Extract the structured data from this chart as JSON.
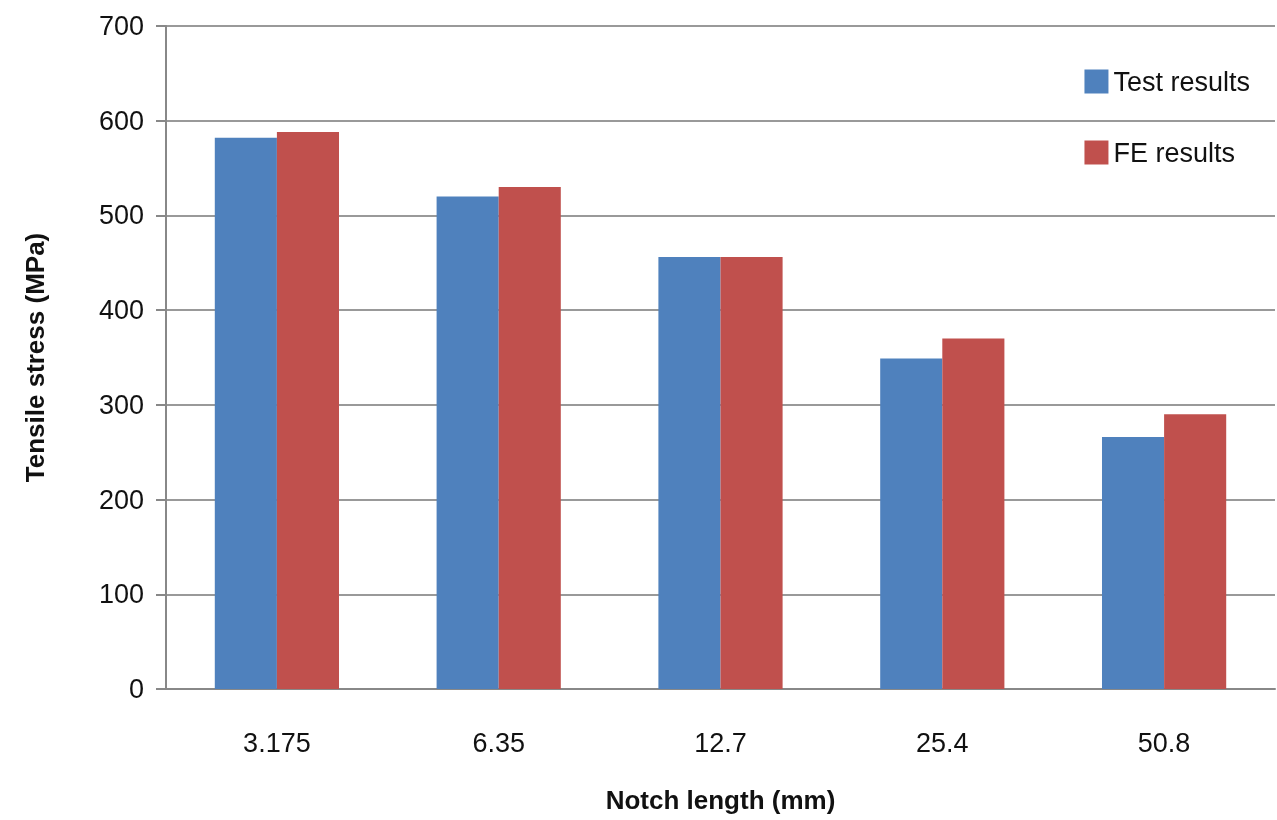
{
  "chart_data": {
    "type": "bar",
    "xlabel": "Notch length (mm)",
    "ylabel": "Tensile stress (MPa)",
    "categories": [
      "3.175",
      "6.35",
      "12.7",
      "25.4",
      "50.8"
    ],
    "series": [
      {
        "name": "Test results",
        "color": "#4f81bd",
        "values": [
          582,
          520,
          456,
          349,
          266
        ]
      },
      {
        "name": "FE results",
        "color": "#c0504d",
        "values": [
          588,
          530,
          456,
          370,
          290
        ]
      }
    ],
    "ylim": [
      0,
      700
    ],
    "yticks": [
      0,
      100,
      200,
      300,
      400,
      500,
      600,
      700
    ],
    "grid": "y",
    "legend": "top right"
  }
}
